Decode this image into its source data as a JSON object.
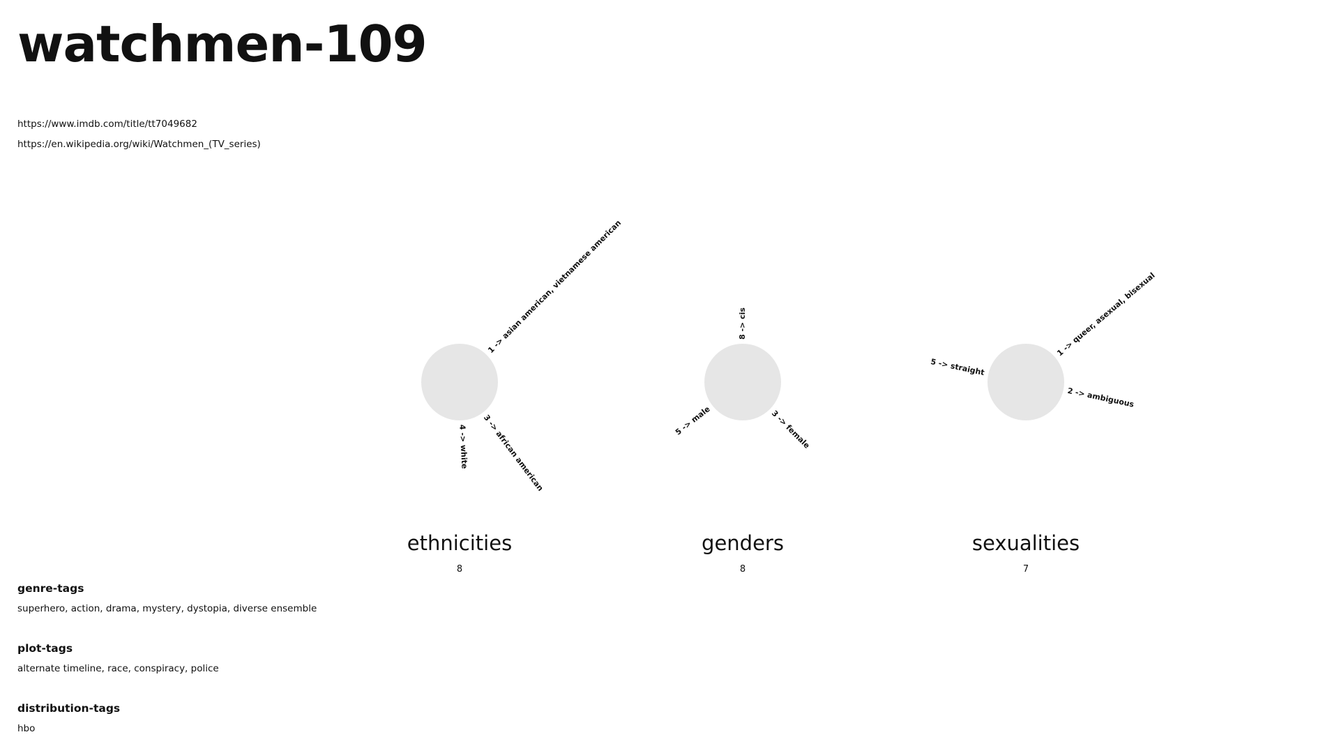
{
  "page": {
    "title": "watchmen-109",
    "links": [
      "https://www.imdb.com/title/tt7049682",
      "https://en.wikipedia.org/wiki/Watchmen_(TV_series)"
    ]
  },
  "chart_data": [
    {
      "type": "radial",
      "title": "ethnicities",
      "total": "8",
      "branches": [
        {
          "count": 1,
          "label": "1 ->  asian american, vietnamese american"
        },
        {
          "count": 3,
          "label": "3 ->  african american"
        },
        {
          "count": 4,
          "label": "4 ->  white"
        }
      ]
    },
    {
      "type": "radial",
      "title": "genders",
      "total": "8",
      "branches": [
        {
          "count": 8,
          "label": "8 ->  cis"
        },
        {
          "count": 3,
          "label": "3 ->  female"
        },
        {
          "count": 5,
          "label": "5 ->  male"
        }
      ]
    },
    {
      "type": "radial",
      "title": "sexualities",
      "total": "7",
      "branches": [
        {
          "count": 1,
          "label": "1 ->  queer, asexual, bisexual"
        },
        {
          "count": 2,
          "label": "2 ->  ambiguous"
        },
        {
          "count": 5,
          "label": "5 ->  straight"
        }
      ]
    }
  ],
  "tags": [
    {
      "heading": "genre-tags",
      "values": "superhero, action, drama, mystery, dystopia, diverse ensemble"
    },
    {
      "heading": "plot-tags",
      "values": "alternate timeline, race, conspiracy, police"
    },
    {
      "heading": "distribution-tags",
      "values": "hbo"
    }
  ]
}
